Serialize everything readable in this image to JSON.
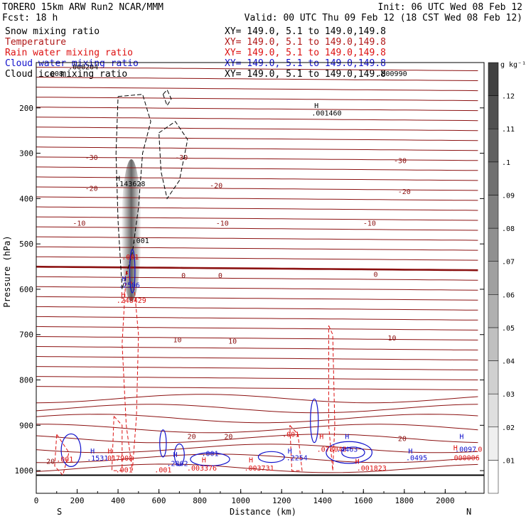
{
  "header": {
    "model": "TORERO  15km ARW   Run2    NCAR/MMM",
    "init": "Init: 06 UTC Wed 08 Feb 12",
    "fcst": "Fcst:   18 h",
    "valid": "Valid: 00 UTC Thu 09 Feb 12 (18 CST Wed 08 Feb 12)"
  },
  "chart_data": {
    "type": "cross-section",
    "fields": [
      {
        "name": "Snow mixing ratio",
        "section": "XY= 149.0,  5.1 to 149.0,149.8",
        "color": "#000000"
      },
      {
        "name": "Temperature",
        "section": "XY= 149.0,  5.1 to 149.0,149.8",
        "color": "#b01818"
      },
      {
        "name": "Rain water mixing ratio",
        "section": "XY= 149.0,  5.1 to 149.0,149.8",
        "color": "#dd1111"
      },
      {
        "name": "Cloud water mixing ratio",
        "section": "XY= 149.0,  5.1 to 149.0,149.8",
        "color": "#1111cc"
      },
      {
        "name": "Cloud ice mixing ratio",
        "section": "XY= 149.0,  5.1 to 149.0,149.8",
        "color": "#000000"
      }
    ],
    "xlabel": "Distance (km)",
    "ylabel": "Pressure (hPa)",
    "x_end_labels": {
      "left": "S",
      "right": "N"
    },
    "x_ticks": [
      0,
      200,
      400,
      600,
      800,
      1000,
      1200,
      1400,
      1600,
      1800,
      2000
    ],
    "xlim": [
      0,
      2190
    ],
    "y_ticks": [
      200,
      300,
      400,
      500,
      600,
      700,
      800,
      900,
      1000
    ],
    "ylim": [
      1050,
      100
    ],
    "colorbar": {
      "unit": "g kg⁻¹",
      "levels": [
        ".01",
        ".02",
        ".03",
        ".04",
        ".05",
        ".06",
        ".07",
        ".08",
        ".09",
        ".1",
        ".11",
        ".12"
      ]
    },
    "temperature_labels": [
      {
        "text": "-30",
        "x": 270,
        "p": 310
      },
      {
        "text": "-30",
        "x": 710,
        "p": 310
      },
      {
        "text": "-30",
        "x": 1780,
        "p": 317
      },
      {
        "text": "-20",
        "x": 270,
        "p": 378
      },
      {
        "text": "-20",
        "x": 880,
        "p": 372
      },
      {
        "text": "-20",
        "x": 1800,
        "p": 385
      },
      {
        "text": "-10",
        "x": 210,
        "p": 455
      },
      {
        "text": "-10",
        "x": 910,
        "p": 455
      },
      {
        "text": "-10",
        "x": 1630,
        "p": 455
      },
      {
        "text": "0",
        "x": 720,
        "p": 570
      },
      {
        "text": "0",
        "x": 900,
        "p": 570
      },
      {
        "text": "0",
        "x": 1660,
        "p": 568
      },
      {
        "text": "10",
        "x": 690,
        "p": 712
      },
      {
        "text": "10",
        "x": 960,
        "p": 715
      },
      {
        "text": "10",
        "x": 1740,
        "p": 708
      },
      {
        "text": "20",
        "x": 760,
        "p": 925
      },
      {
        "text": "20",
        "x": 940,
        "p": 925
      },
      {
        "text": "20",
        "x": 1790,
        "p": 930
      },
      {
        "text": "20",
        "x": 70,
        "p": 980
      }
    ],
    "annotations": [
      {
        "text": "H",
        "x": 400,
        "p": 361,
        "color": "#000000"
      },
      {
        "text": ".143628",
        "x": 460,
        "p": 373,
        "color": "#000000"
      },
      {
        "text": ".001",
        "x": 510,
        "p": 498,
        "color": "#000000"
      },
      {
        "text": ".001",
        "x": 460,
        "p": 534,
        "color": "#dd1111"
      },
      {
        "text": "H",
        "x": 430,
        "p": 582,
        "color": "#1111cc"
      },
      {
        "text": ".2506",
        "x": 455,
        "p": 596,
        "color": "#1111cc"
      },
      {
        "text": "H",
        "x": 425,
        "p": 617,
        "color": "#dd1111"
      },
      {
        "text": ".248429",
        "x": 465,
        "p": 630,
        "color": "#dd1111"
      },
      {
        "text": ".000204",
        "x": 230,
        "p": 115,
        "color": "#000000"
      },
      {
        "text": ".008",
        "x": 90,
        "p": 130,
        "color": "#000000"
      },
      {
        "text": ".000990",
        "x": 1740,
        "p": 130,
        "color": "#000000"
      },
      {
        "text": "H",
        "x": 1370,
        "p": 200,
        "color": "#000000"
      },
      {
        "text": ".001460",
        "x": 1420,
        "p": 217,
        "color": "#000000"
      },
      {
        "text": ".001",
        "x": 140,
        "p": 980,
        "color": "#dd1111"
      },
      {
        "text": "H",
        "x": 275,
        "p": 962,
        "color": "#1111cc"
      },
      {
        "text": ".1531",
        "x": 300,
        "p": 978,
        "color": "#1111cc"
      },
      {
        "text": "H",
        "x": 360,
        "p": 962,
        "color": "#dd1111"
      },
      {
        "text": ".017908",
        "x": 400,
        "p": 978,
        "color": "#dd1111"
      },
      {
        "text": "H",
        "x": 680,
        "p": 970,
        "color": "#1111cc"
      },
      {
        "text": ".2862",
        "x": 690,
        "p": 990,
        "color": "#1111cc"
      },
      {
        "text": ".001",
        "x": 850,
        "p": 968,
        "color": "#1111cc"
      },
      {
        "text": "H",
        "x": 820,
        "p": 982,
        "color": "#dd1111"
      },
      {
        "text": ".003376",
        "x": 810,
        "p": 1000,
        "color": "#dd1111"
      },
      {
        "text": "H",
        "x": 1050,
        "p": 982,
        "color": "#dd1111"
      },
      {
        "text": ".003731",
        "x": 1090,
        "p": 1000,
        "color": "#dd1111"
      },
      {
        "text": "H",
        "x": 1240,
        "p": 962,
        "color": "#1111cc"
      },
      {
        "text": ".2254",
        "x": 1275,
        "p": 977,
        "color": "#1111cc"
      },
      {
        "text": ".001",
        "x": 1245,
        "p": 925,
        "color": "#dd1111"
      },
      {
        "text": "H",
        "x": 1395,
        "p": 930,
        "color": "#dd1111"
      },
      {
        "text": ".078046",
        "x": 1445,
        "p": 958,
        "color": "#dd1111"
      },
      {
        "text": ".4463",
        "x": 1520,
        "p": 958,
        "color": "#1111cc"
      },
      {
        "text": "H",
        "x": 1520,
        "p": 930,
        "color": "#1111cc"
      },
      {
        "text": "H",
        "x": 1570,
        "p": 985,
        "color": "#dd1111"
      },
      {
        "text": ".001823",
        "x": 1640,
        "p": 1000,
        "color": "#dd1111"
      },
      {
        "text": "H",
        "x": 1830,
        "p": 962,
        "color": "#1111cc"
      },
      {
        "text": ".0495",
        "x": 1860,
        "p": 977,
        "color": "#1111cc"
      },
      {
        "text": "H",
        "x": 2080,
        "p": 930,
        "color": "#1111cc"
      },
      {
        "text": ".0097",
        "x": 2100,
        "p": 958,
        "color": "#1111cc"
      },
      {
        "text": "H",
        "x": 2050,
        "p": 955,
        "color": "#dd1111"
      },
      {
        "text": ".000006",
        "x": 2095,
        "p": 977,
        "color": "#dd1111"
      },
      {
        "text": ".001",
        "x": 430,
        "p": 1004,
        "color": "#dd1111"
      },
      {
        "text": ".001",
        "x": 620,
        "p": 1004,
        "color": "#dd1111"
      },
      {
        "text": ".0",
        "x": 2160,
        "p": 958,
        "color": "#dd1111"
      }
    ]
  }
}
